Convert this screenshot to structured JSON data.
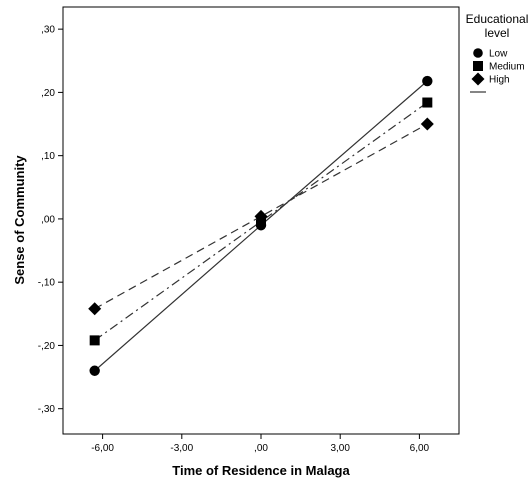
{
  "chart_data": {
    "type": "line",
    "xlabel": "Time of Residence in Malaga",
    "ylabel": "Sense of Community",
    "xlim": [
      -7.5,
      7.5
    ],
    "ylim": [
      -0.34,
      0.335
    ],
    "xticks": [
      -6,
      -3,
      0,
      3,
      6
    ],
    "xtick_labels": [
      "-6,00",
      "-3,00",
      ",00",
      "3,00",
      "6,00"
    ],
    "yticks": [
      -0.3,
      -0.2,
      -0.1,
      0,
      0.1,
      0.2,
      0.3
    ],
    "ytick_labels": [
      "-,30",
      "-,20",
      "-,10",
      ",00",
      ",10",
      ",20",
      ",30"
    ],
    "grid": false,
    "legend": {
      "title": "Educational level",
      "placement": "outside-right",
      "entries": [
        "Low",
        "Medium",
        "High"
      ]
    },
    "series": [
      {
        "name": "Low",
        "marker": "circle",
        "line": "solid",
        "x": [
          -6.3,
          0,
          6.3
        ],
        "y": [
          -0.24,
          -0.01,
          0.218
        ]
      },
      {
        "name": "Medium",
        "marker": "square",
        "line": "dashdot",
        "x": [
          -6.3,
          0,
          6.3
        ],
        "y": [
          -0.192,
          -0.004,
          0.184
        ]
      },
      {
        "name": "High",
        "marker": "diamond",
        "line": "dashed",
        "x": [
          -6.3,
          0,
          6.3
        ],
        "y": [
          -0.142,
          0.004,
          0.15
        ]
      }
    ]
  }
}
